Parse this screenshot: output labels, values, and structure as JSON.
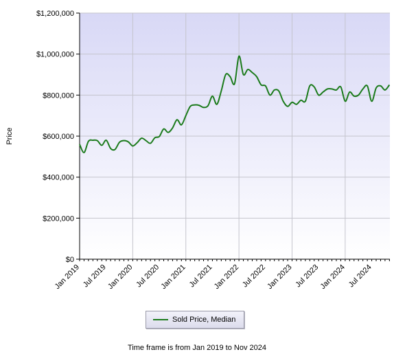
{
  "chart_data": {
    "type": "line",
    "ylabel": "Price",
    "xlabel": "",
    "ylim": [
      0,
      1200000
    ],
    "xlim": [
      "2019-01",
      "2024-11"
    ],
    "y_ticks": [
      0,
      200000,
      400000,
      600000,
      800000,
      1000000,
      1200000
    ],
    "y_tick_labels": [
      "$0",
      "$200,000",
      "$400,000",
      "$600,000",
      "$800,000",
      "$1,000,000",
      "$1,200,000"
    ],
    "x_ticks": [
      "2019-01",
      "2019-07",
      "2020-01",
      "2020-07",
      "2021-01",
      "2021-07",
      "2022-01",
      "2022-07",
      "2023-01",
      "2023-07",
      "2024-01",
      "2024-07"
    ],
    "x_tick_labels": [
      "Jan 2019",
      "Jul 2019",
      "Jan 2020",
      "Jul 2020",
      "Jan 2021",
      "Jul 2021",
      "Jan 2022",
      "Jul 2022",
      "Jan 2023",
      "Jul 2023",
      "Jan 2024",
      "Jul 2024"
    ],
    "grid": true,
    "legend_position": "bottom",
    "series": [
      {
        "name": "Sold Price, Median",
        "color": "#1a7a1a",
        "x": [
          "2019-01",
          "2019-02",
          "2019-03",
          "2019-04",
          "2019-05",
          "2019-06",
          "2019-07",
          "2019-08",
          "2019-09",
          "2019-10",
          "2019-11",
          "2019-12",
          "2020-01",
          "2020-02",
          "2020-03",
          "2020-04",
          "2020-05",
          "2020-06",
          "2020-07",
          "2020-08",
          "2020-09",
          "2020-10",
          "2020-11",
          "2020-12",
          "2021-01",
          "2021-02",
          "2021-03",
          "2021-04",
          "2021-05",
          "2021-06",
          "2021-07",
          "2021-08",
          "2021-09",
          "2021-10",
          "2021-11",
          "2021-12",
          "2022-01",
          "2022-02",
          "2022-03",
          "2022-04",
          "2022-05",
          "2022-06",
          "2022-07",
          "2022-08",
          "2022-09",
          "2022-10",
          "2022-11",
          "2022-12",
          "2023-01",
          "2023-02",
          "2023-03",
          "2023-04",
          "2023-05",
          "2023-06",
          "2023-07",
          "2023-08",
          "2023-09",
          "2023-10",
          "2023-11",
          "2023-12",
          "2024-01",
          "2024-02",
          "2024-03",
          "2024-04",
          "2024-05",
          "2024-06",
          "2024-07",
          "2024-08",
          "2024-09",
          "2024-10",
          "2024-11"
        ],
        "values": [
          560000,
          520000,
          575000,
          580000,
          578000,
          555000,
          580000,
          540000,
          535000,
          570000,
          578000,
          572000,
          552000,
          568000,
          590000,
          578000,
          565000,
          592000,
          598000,
          635000,
          618000,
          640000,
          680000,
          655000,
          700000,
          745000,
          752000,
          750000,
          740000,
          748000,
          795000,
          755000,
          820000,
          900000,
          890000,
          855000,
          990000,
          900000,
          925000,
          910000,
          890000,
          850000,
          845000,
          800000,
          825000,
          820000,
          770000,
          745000,
          765000,
          755000,
          775000,
          770000,
          845000,
          840000,
          800000,
          815000,
          830000,
          830000,
          825000,
          840000,
          770000,
          815000,
          795000,
          800000,
          830000,
          845000,
          770000,
          835000,
          845000,
          825000,
          850000
        ]
      }
    ]
  },
  "legend": {
    "label": "Sold Price, Median"
  },
  "footer": {
    "text": "Time frame is from Jan 2019 to Nov 2024"
  }
}
